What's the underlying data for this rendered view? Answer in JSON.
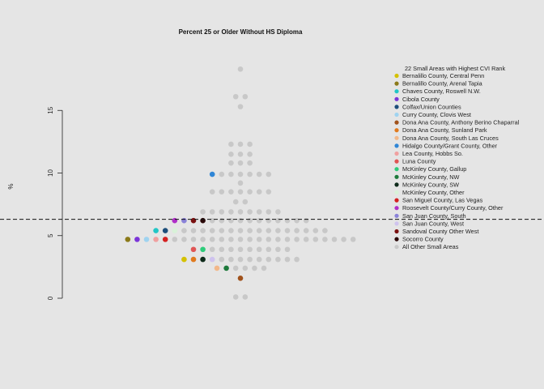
{
  "chart_data": {
    "type": "scatter",
    "title": "Percent 25 or Older Without HS Diploma",
    "xlabel": "",
    "ylabel": "%",
    "ylim": [
      0,
      19
    ],
    "yticks": [
      0,
      5,
      10,
      15
    ],
    "reference_line": 6.3,
    "legend_placement": "right",
    "legend_title": "22 Small Areas with Highest CVI Rank",
    "series": [
      {
        "name": "Bernalillo County, Central Penn",
        "color": "#d4c100",
        "values": [
          3.1
        ]
      },
      {
        "name": "Bernalillo County, Arenal Tapia",
        "color": "#8b7a1a",
        "values": [
          4.7
        ]
      },
      {
        "name": "Chaves County, Roswell N.W.",
        "color": "#22c6c6",
        "values": [
          5.4
        ]
      },
      {
        "name": "Cibola County",
        "color": "#7b35d8",
        "values": [
          4.7
        ]
      },
      {
        "name": "Colfax/Union Counties",
        "color": "#1c4d7a",
        "values": [
          5.4
        ]
      },
      {
        "name": "Curry County, Clovis West",
        "color": "#9fd3f0",
        "values": [
          4.7
        ]
      },
      {
        "name": "Dona Ana County, Anthony Berino Chaparral",
        "color": "#a0521c",
        "values": [
          1.6
        ]
      },
      {
        "name": "Dona Ana County, Sunland Park",
        "color": "#e07a1e",
        "values": [
          3.1
        ]
      },
      {
        "name": "Dona Ana County, South Las Cruces",
        "color": "#f2b88a",
        "values": [
          2.4
        ]
      },
      {
        "name": "Hidalgo County/Grant County, Other",
        "color": "#2f86d6",
        "values": [
          9.9
        ]
      },
      {
        "name": "Lea County, Hobbs So.",
        "color": "#f0a0a0",
        "values": [
          4.7
        ]
      },
      {
        "name": "Luna County",
        "color": "#e05555",
        "values": [
          3.9
        ]
      },
      {
        "name": "McKinley County, Gallup",
        "color": "#2ecc7a",
        "values": [
          3.9
        ]
      },
      {
        "name": "McKinley County, NW",
        "color": "#1e7a3c",
        "values": [
          2.4
        ]
      },
      {
        "name": "McKinley County, SW",
        "color": "#0e2a1a",
        "values": [
          3.1
        ]
      },
      {
        "name": "McKinley County, Other",
        "color": "#d8f2d8",
        "values": [
          5.4
        ]
      },
      {
        "name": "San Miguel County, Las Vegas",
        "color": "#d42020",
        "values": [
          4.7
        ]
      },
      {
        "name": "Roosevelt County/Curry County, Other",
        "color": "#b030c8",
        "values": [
          6.2
        ]
      },
      {
        "name": "San Juan County, South",
        "color": "#8a82d8",
        "values": [
          6.2
        ]
      },
      {
        "name": "San Juan County, West",
        "color": "#cfc3ee",
        "values": [
          3.1
        ]
      },
      {
        "name": "Sandoval County Other West",
        "color": "#7a1010",
        "values": [
          6.2
        ]
      },
      {
        "name": "Socorro County",
        "color": "#2a0808",
        "values": [
          6.2
        ]
      },
      {
        "name": "All Other Small Areas",
        "color": "#c8c8c8",
        "values": [
          0.1,
          0.1,
          2.4,
          2.4,
          2.4,
          2.4,
          3.1,
          3.1,
          3.1,
          3.1,
          3.1,
          3.1,
          3.1,
          3.1,
          3.1,
          3.9,
          3.9,
          3.9,
          3.9,
          3.9,
          3.9,
          3.9,
          3.9,
          3.9,
          4.7,
          4.7,
          4.7,
          4.7,
          4.7,
          4.7,
          4.7,
          4.7,
          4.7,
          4.7,
          4.7,
          4.7,
          4.7,
          4.7,
          4.7,
          4.7,
          4.7,
          4.7,
          4.7,
          4.7,
          5.4,
          5.4,
          5.4,
          5.4,
          5.4,
          5.4,
          5.4,
          5.4,
          5.4,
          5.4,
          5.4,
          5.4,
          5.4,
          5.4,
          5.4,
          5.4,
          6.2,
          6.2,
          6.2,
          6.2,
          6.2,
          6.2,
          6.2,
          6.2,
          6.2,
          6.2,
          6.2,
          6.9,
          6.9,
          6.9,
          6.9,
          6.9,
          6.9,
          6.9,
          6.9,
          6.9,
          7.7,
          7.7,
          8.5,
          8.5,
          8.5,
          8.5,
          8.5,
          8.5,
          8.5,
          9.2,
          9.9,
          9.9,
          9.9,
          9.9,
          9.9,
          9.9,
          10.8,
          10.8,
          10.8,
          11.5,
          11.5,
          11.5,
          12.3,
          12.3,
          12.3,
          15.3,
          16.1,
          16.1,
          18.3
        ]
      }
    ]
  }
}
